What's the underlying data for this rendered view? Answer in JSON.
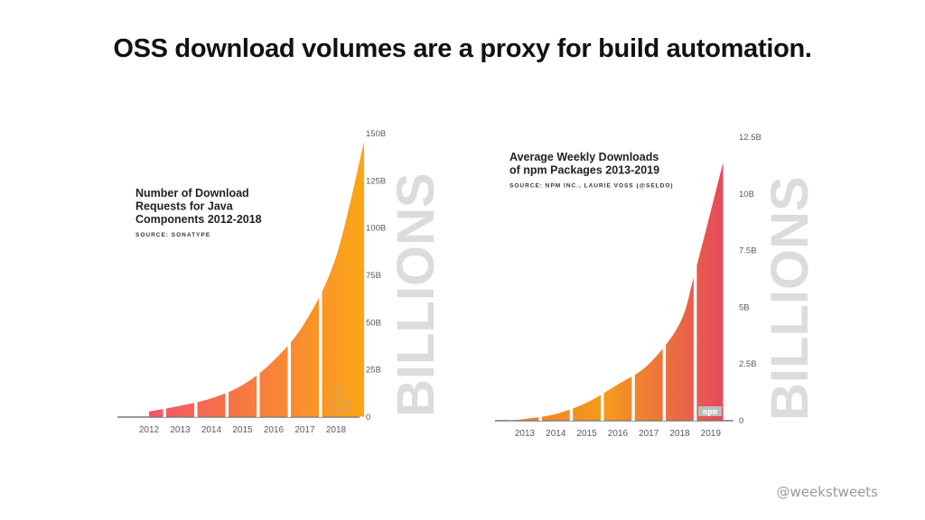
{
  "slide": {
    "title": "OSS download volumes are a proxy for build automation.",
    "handle": "@weekstweets"
  },
  "chart_data": [
    {
      "type": "area",
      "title_lines": [
        "Number of Download",
        "Requests for Java",
        "Components 2012-2018"
      ],
      "source": "SOURCE: SONATYPE",
      "axis_side_label": "BILLIONS",
      "categories": [
        "2012",
        "2013",
        "2014",
        "2015",
        "2016",
        "2017",
        "2018"
      ],
      "ylim": [
        0,
        150
      ],
      "yticks": [
        0,
        25,
        50,
        75,
        100,
        125,
        150
      ],
      "ytick_labels": [
        "0",
        "25B",
        "50B",
        "75B",
        "100B",
        "125B",
        "150B"
      ],
      "curve": [
        [
          2012,
          3
        ],
        [
          2013,
          6
        ],
        [
          2014,
          10
        ],
        [
          2015,
          17
        ],
        [
          2016,
          30
        ],
        [
          2017,
          50
        ],
        [
          2018,
          85
        ],
        [
          2018.9,
          146
        ]
      ],
      "dividers": [
        2012.5,
        2013.5,
        2014.5,
        2015.5,
        2016.5,
        2017.5
      ],
      "colors": {
        "start": "#f25567",
        "end": "#fca616",
        "label": "#5a5a5a",
        "side": "#dcdcdc",
        "title": "#222222",
        "icon": "#d9a060"
      },
      "logo": "java-logo",
      "grid": false,
      "legend": "none"
    },
    {
      "type": "area",
      "title_lines": [
        "Average Weekly Downloads",
        "of npm Packages 2013-2019"
      ],
      "source": "SOURCE: NPM INC., LAURIE VOSS (@SELDO)",
      "axis_side_label": "BILLIONS",
      "categories": [
        "2013",
        "2014",
        "2015",
        "2016",
        "2017",
        "2018",
        "2019"
      ],
      "ylim": [
        0,
        12.5
      ],
      "yticks": [
        0,
        2.5,
        5,
        7.5,
        10,
        12.5
      ],
      "ytick_labels": [
        "0",
        "2.5B",
        "5B",
        "7.5B",
        "10B",
        "12.5B"
      ],
      "curve": [
        [
          2012.5,
          0.02
        ],
        [
          2013,
          0.08
        ],
        [
          2014,
          0.3
        ],
        [
          2015,
          0.8
        ],
        [
          2016,
          1.6
        ],
        [
          2017,
          2.5
        ],
        [
          2018,
          4.3
        ],
        [
          2018.5,
          6.6
        ],
        [
          2019.4,
          11.4
        ]
      ],
      "dividers": [
        2013.5,
        2014.5,
        2015.5,
        2016.5,
        2017.5,
        2018.5
      ],
      "colors": {
        "start": "#f27a30",
        "mid": "#f59a1c",
        "end": "#e44a5b",
        "label": "#5a5a5a",
        "side": "#dcdcdc",
        "title": "#222222",
        "badge": "#bdbdbd"
      },
      "logo": "npm",
      "grid": false,
      "legend": "none"
    }
  ]
}
